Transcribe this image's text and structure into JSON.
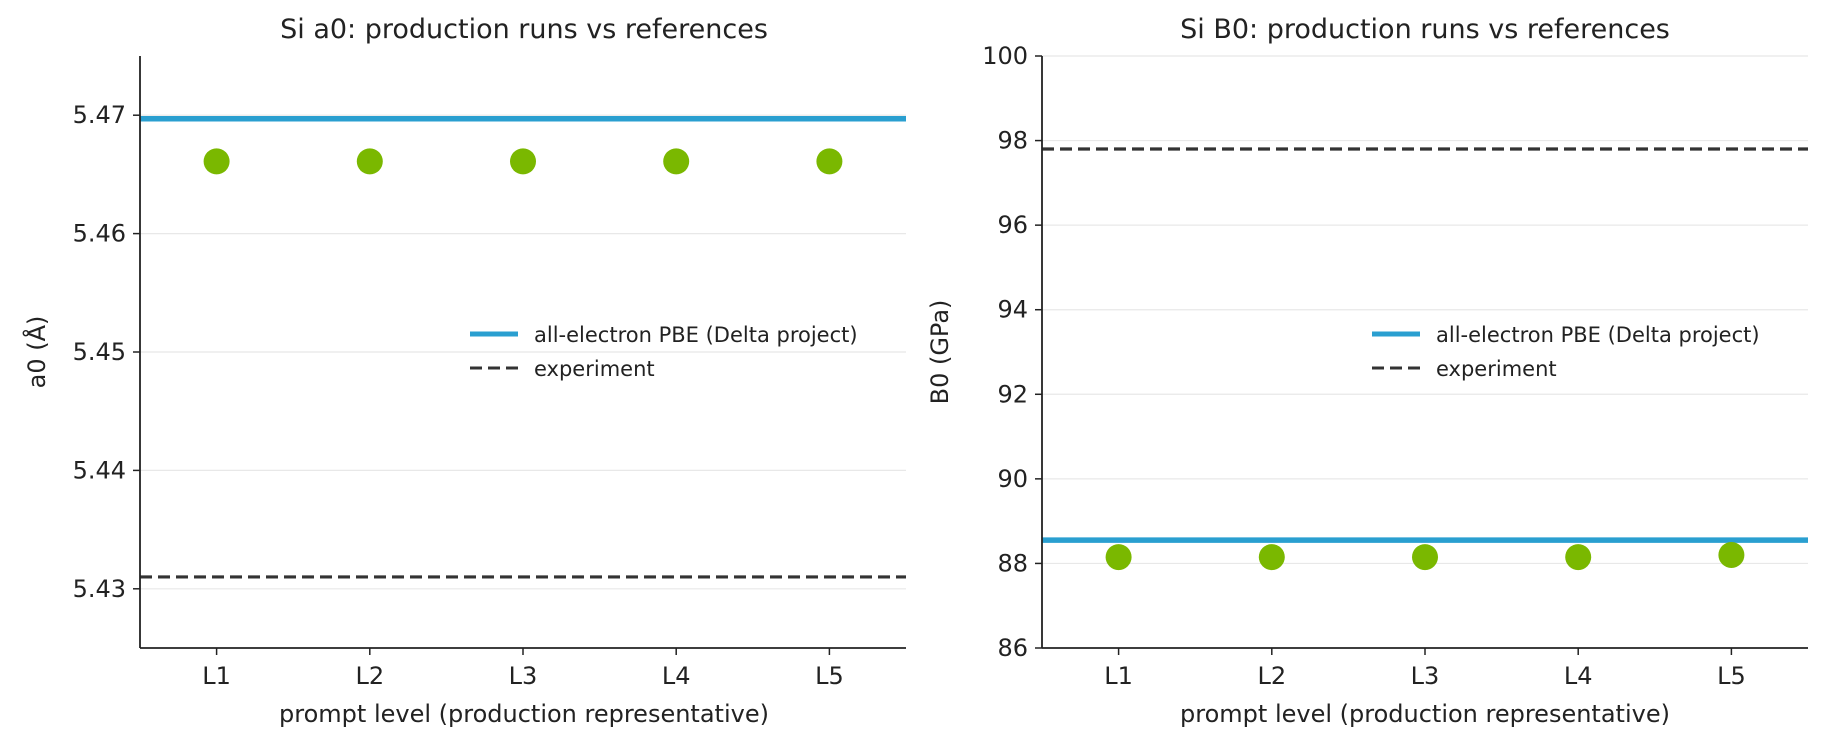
{
  "colors": {
    "reference_line": "#2a9fd0",
    "experiment_line": "#333333",
    "points": "#7ab800",
    "grid": "#e8e8e8",
    "axis": "#222222"
  },
  "chart_data": [
    {
      "type": "scatter",
      "title": "Si a0: production runs vs references",
      "xlabel": "prompt level (production representative)",
      "ylabel": "a0 (Å)",
      "categories": [
        "L1",
        "L2",
        "L3",
        "L4",
        "L5"
      ],
      "series": [
        {
          "values": [
            5.4661,
            5.4661,
            5.4661,
            5.4661,
            5.4661
          ]
        }
      ],
      "reference_lines": [
        {
          "name": "all-electron PBE (Delta project)",
          "value": 5.4697,
          "style": "solid"
        },
        {
          "name": "experiment",
          "value": 5.431,
          "style": "dashed"
        }
      ],
      "ylim": [
        5.425,
        5.475
      ],
      "yticks": [
        5.43,
        5.44,
        5.45,
        5.46,
        5.47
      ],
      "ytick_labels": [
        "5.43",
        "5.44",
        "5.45",
        "5.46",
        "5.47"
      ],
      "grid": "horizontal",
      "legend_position": "center-right"
    },
    {
      "type": "scatter",
      "title": "Si B0: production runs vs references",
      "xlabel": "prompt level (production representative)",
      "ylabel": "B0 (GPa)",
      "categories": [
        "L1",
        "L2",
        "L3",
        "L4",
        "L5"
      ],
      "series": [
        {
          "values": [
            88.15,
            88.15,
            88.15,
            88.15,
            88.2
          ]
        }
      ],
      "reference_lines": [
        {
          "name": "all-electron PBE (Delta project)",
          "value": 88.55,
          "style": "solid"
        },
        {
          "name": "experiment",
          "value": 97.8,
          "style": "dashed"
        }
      ],
      "ylim": [
        86,
        100
      ],
      "yticks": [
        86,
        88,
        90,
        92,
        94,
        96,
        98,
        100
      ],
      "ytick_labels": [
        "86",
        "88",
        "90",
        "92",
        "94",
        "96",
        "98",
        "100"
      ],
      "grid": "horizontal",
      "legend_position": "center-right"
    }
  ]
}
